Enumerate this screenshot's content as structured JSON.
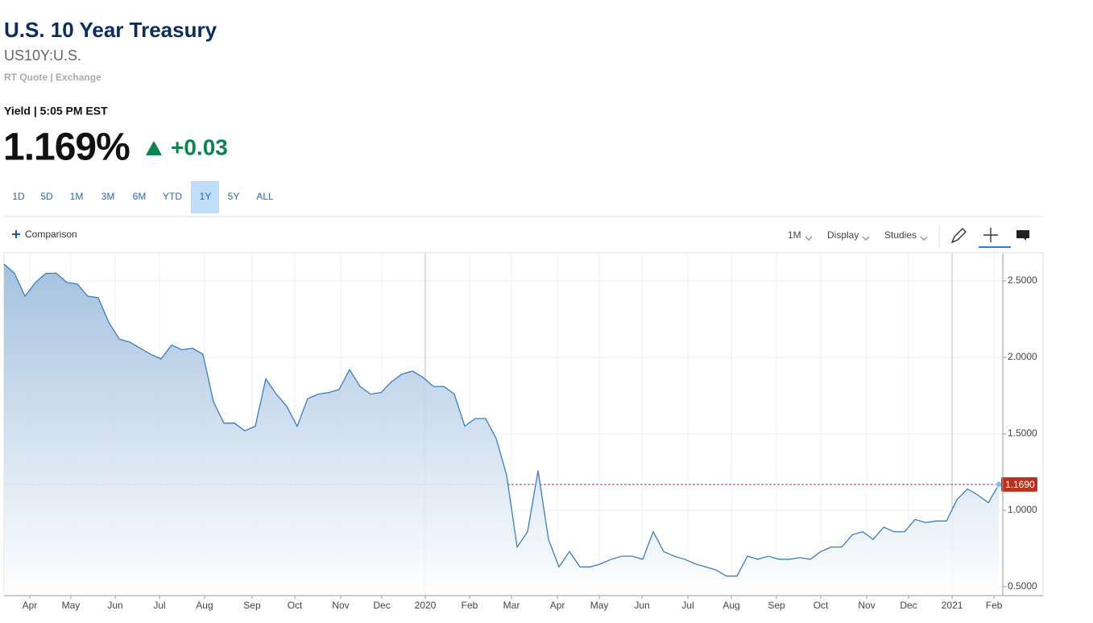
{
  "header": {
    "title": "U.S. 10 Year Treasury",
    "symbol": "US10Y:U.S.",
    "source": "RT Quote | Exchange",
    "quote_label": "Yield | 5:05 PM EST",
    "price": "1.169%",
    "change": "+0.03"
  },
  "range_buttons": [
    "1D",
    "5D",
    "1M",
    "3M",
    "6M",
    "YTD",
    "1Y",
    "5Y",
    "ALL"
  ],
  "active_range_index": 6,
  "toolbar": {
    "comparison": "Comparison",
    "interval": "1M",
    "display": "Display",
    "studies": "Studies"
  },
  "chart_data": {
    "type": "area",
    "color": "#3a7ebf",
    "grid": true,
    "values": [
      2.61,
      2.55,
      2.4,
      2.49,
      2.55,
      2.55,
      2.49,
      2.48,
      2.4,
      2.39,
      2.23,
      2.12,
      2.1,
      2.06,
      2.02,
      1.99,
      2.08,
      2.05,
      2.06,
      2.02,
      1.71,
      1.57,
      1.57,
      1.52,
      1.55,
      1.86,
      1.76,
      1.68,
      1.55,
      1.73,
      1.76,
      1.77,
      1.79,
      1.92,
      1.81,
      1.76,
      1.77,
      1.84,
      1.89,
      1.91,
      1.87,
      1.81,
      1.81,
      1.76,
      1.55,
      1.6,
      1.6,
      1.47,
      1.23,
      0.76,
      0.86,
      1.26,
      0.81,
      0.63,
      0.73,
      0.63,
      0.63,
      0.65,
      0.68,
      0.7,
      0.7,
      0.68,
      0.86,
      0.73,
      0.7,
      0.68,
      0.65,
      0.63,
      0.61,
      0.57,
      0.57,
      0.7,
      0.68,
      0.7,
      0.68,
      0.68,
      0.69,
      0.68,
      0.73,
      0.76,
      0.76,
      0.84,
      0.86,
      0.81,
      0.89,
      0.86,
      0.86,
      0.94,
      0.92,
      0.93,
      0.93,
      1.07,
      1.14,
      1.1,
      1.05,
      1.169
    ],
    "xlim": [
      0,
      95.38
    ],
    "xticks": [
      {
        "value": 2.46,
        "label": "Apr"
      },
      {
        "value": 6.38,
        "label": "May"
      },
      {
        "value": 10.62,
        "label": "Jun"
      },
      {
        "value": 14.85,
        "label": "Jul"
      },
      {
        "value": 19.15,
        "label": "Aug"
      },
      {
        "value": 23.69,
        "label": "Sep"
      },
      {
        "value": 27.77,
        "label": "Oct"
      },
      {
        "value": 32.15,
        "label": "Nov"
      },
      {
        "value": 36.08,
        "label": "Dec"
      },
      {
        "value": 40.23,
        "label": "2020"
      },
      {
        "value": 44.46,
        "label": "Feb"
      },
      {
        "value": 48.46,
        "label": "Mar"
      },
      {
        "value": 52.85,
        "label": "Apr"
      },
      {
        "value": 56.85,
        "label": "May"
      },
      {
        "value": 60.92,
        "label": "Jun"
      },
      {
        "value": 65.31,
        "label": "Jul"
      },
      {
        "value": 69.46,
        "label": "Aug"
      },
      {
        "value": 73.77,
        "label": "Sep"
      },
      {
        "value": 78,
        "label": "Oct"
      },
      {
        "value": 82.38,
        "label": "Nov"
      },
      {
        "value": 86.38,
        "label": "Dec"
      },
      {
        "value": 90.54,
        "label": "2021"
      },
      {
        "value": 94.54,
        "label": "Feb"
      }
    ],
    "ylim": [
      0.442,
      2.679
    ],
    "yticks": [
      {
        "value": 0.5,
        "label": "0.5000"
      },
      {
        "value": 1,
        "label": "1.0000"
      },
      {
        "value": 1.5,
        "label": "1.5000"
      },
      {
        "value": 2,
        "label": "2.0000"
      },
      {
        "value": 2.5,
        "label": "2.5000"
      }
    ],
    "last_price": {
      "value": 1.169,
      "label": "1.1690"
    }
  }
}
